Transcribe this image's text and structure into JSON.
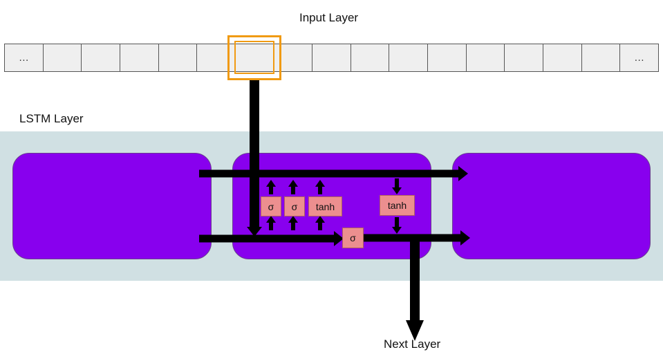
{
  "labels": {
    "input_layer": "Input Layer",
    "lstm_layer": "LSTM Layer",
    "next_layer": "Next Layer"
  },
  "input_sequence": {
    "cells": [
      "…",
      "",
      "",
      "",
      "",
      "",
      "",
      "",
      "",
      "",
      "",
      "",
      "",
      "",
      "",
      "",
      "…"
    ],
    "highlighted_index": 6
  },
  "gates": {
    "forget": "σ",
    "input": "σ",
    "candidate": "tanh",
    "cell_activation": "tanh",
    "output": "σ"
  },
  "colors": {
    "lstm_band": "#d0e0e3",
    "lstm_block": "#8800ee",
    "gate_fill": "#ec8f8f",
    "highlight": "#f09a12",
    "input_cell": "#efefef",
    "wire": "#000000"
  }
}
